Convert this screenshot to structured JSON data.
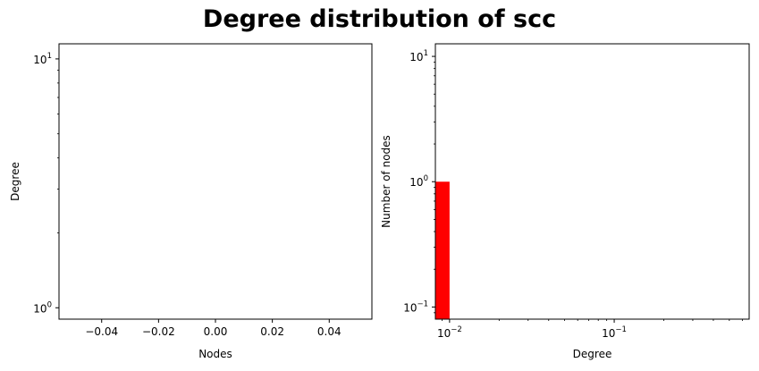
{
  "title": "Degree distribution of scc",
  "chart_data": [
    {
      "type": "scatter",
      "xlabel": "Nodes",
      "ylabel": "Degree",
      "xscale": "linear",
      "yscale": "log",
      "xlim": [
        -0.055,
        0.055
      ],
      "ylim": [
        0.9,
        11.5
      ],
      "xticks": [
        {
          "value": -0.04,
          "label": "−0.04"
        },
        {
          "value": -0.02,
          "label": "−0.02"
        },
        {
          "value": 0.0,
          "label": "0.00"
        },
        {
          "value": 0.02,
          "label": "0.02"
        },
        {
          "value": 0.04,
          "label": "0.04"
        }
      ],
      "yticks": [
        {
          "value": 1,
          "base": "10",
          "exp": "0"
        },
        {
          "value": 10,
          "base": "10",
          "exp": "1"
        }
      ],
      "points": []
    },
    {
      "type": "bar",
      "xlabel": "Degree",
      "ylabel": "Number of nodes",
      "xscale": "log",
      "yscale": "log",
      "xlim": [
        0.0082,
        0.66
      ],
      "ylim": [
        0.08,
        12.6
      ],
      "xticks": [
        {
          "value": 0.01,
          "base": "10",
          "exp": "−2"
        },
        {
          "value": 0.1,
          "base": "10",
          "exp": "−1"
        }
      ],
      "yticks": [
        {
          "value": 0.1,
          "base": "10",
          "exp": "−1"
        },
        {
          "value": 1,
          "base": "10",
          "exp": "0"
        },
        {
          "value": 10,
          "base": "10",
          "exp": "1"
        }
      ],
      "bars": [
        {
          "x0": 0.0082,
          "x1": 0.01,
          "value": 1
        }
      ],
      "bar_color": "#ff0000"
    }
  ]
}
